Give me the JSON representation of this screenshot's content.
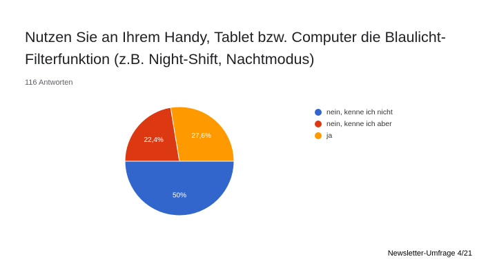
{
  "title": "Nutzen Sie an Ihrem Handy, Tablet bzw. Computer die Blaulicht-Filterfunktion (z.B. Night-Shift, Nachtmodus)",
  "responses": "116 Antworten",
  "footer": "Newsletter-Umfrage 4/21",
  "chart_data": {
    "type": "pie",
    "slices": [
      {
        "label": "nein, kenne ich nicht",
        "value": 50,
        "value_label": "50%",
        "color": "#3366cc"
      },
      {
        "label": "nein, kenne ich aber",
        "value": 22.4,
        "value_label": "22,4%",
        "color": "#dc3912"
      },
      {
        "label": "ja",
        "value": 27.6,
        "value_label": "27,6%",
        "color": "#ff9900"
      }
    ],
    "legend_position": "right"
  }
}
